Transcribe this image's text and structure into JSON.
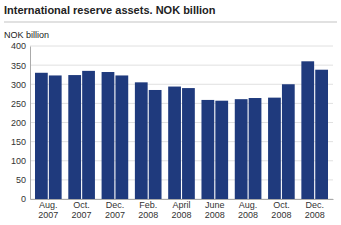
{
  "chart_data": {
    "type": "bar",
    "title": "International reserve assets. NOK billion",
    "ylabel": "NOK billion",
    "categories": [
      "Aug.\n2007",
      "Oct.\n2007",
      "Dec.\n2007",
      "Feb.\n2008",
      "April\n2008",
      "June\n2008",
      "Aug.\n2008",
      "Oct.\n2008",
      "Dec.\n2008"
    ],
    "series": [
      {
        "values": [
          330,
          324,
          332,
          305,
          294,
          259,
          261,
          265,
          360
        ]
      },
      {
        "values": [
          323,
          335,
          323,
          285,
          290,
          257,
          264,
          300,
          338
        ]
      }
    ],
    "color": "#1f3a7d",
    "ylim": [
      0,
      400
    ],
    "yticks": [
      0,
      50,
      100,
      150,
      200,
      250,
      300,
      350,
      400
    ],
    "grid": true
  }
}
